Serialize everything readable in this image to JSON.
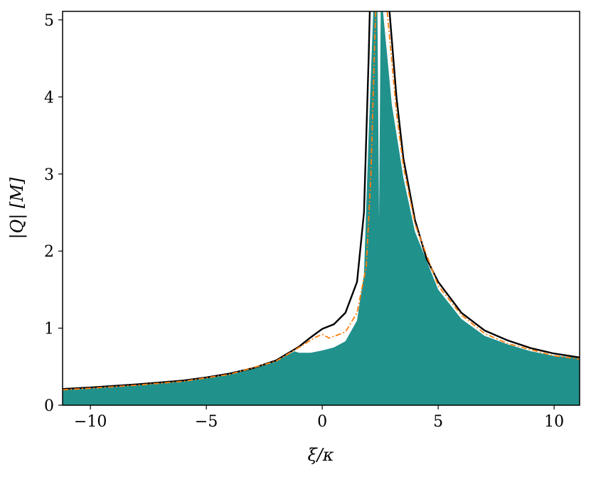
{
  "chart_data": {
    "type": "line",
    "x_label": "ξ/κ",
    "y_label": "|Q| [M]",
    "xlim": [
      -11.2,
      11.1
    ],
    "ylim": [
      0,
      5.11
    ],
    "xticks": [
      {
        "value": -10,
        "label": "−10"
      },
      {
        "value": -5,
        "label": "−5"
      },
      0,
      5,
      10
    ],
    "yticks": [
      0,
      1,
      2,
      3,
      4,
      5
    ],
    "series": [
      {
        "kind": "area",
        "color": "#21918c",
        "x": [
          -11.2,
          -10,
          -8,
          -6,
          -4,
          -2,
          -1.2,
          -1,
          -0.5,
          0,
          0.5,
          1,
          1.5,
          1.8,
          2.0,
          2.2,
          2.38,
          2.45,
          2.52,
          2.62,
          3.0,
          3.5,
          4,
          5,
          6,
          7,
          8,
          9,
          10,
          11.1
        ],
        "values": [
          0.2,
          0.22,
          0.26,
          0.31,
          0.4,
          0.57,
          0.7,
          0.68,
          0.68,
          0.71,
          0.75,
          0.83,
          1.1,
          1.7,
          3.5,
          5.11,
          5.11,
          2.4,
          5.11,
          5.11,
          3.9,
          2.95,
          2.25,
          1.5,
          1.12,
          0.9,
          0.79,
          0.7,
          0.64,
          0.62
        ]
      },
      {
        "kind": "line",
        "color": "#000000",
        "dash": "solid",
        "x": [
          -11.2,
          -10,
          -8,
          -6,
          -5,
          -4,
          -3,
          -2,
          -1,
          -0.5,
          0,
          0.5,
          1,
          1.5,
          1.8,
          2.0,
          2.05,
          2.5,
          2.9,
          3.2,
          3.5,
          4,
          4.5,
          5,
          6,
          7,
          8,
          9,
          10,
          11.1
        ],
        "values": [
          0.21,
          0.23,
          0.27,
          0.32,
          0.36,
          0.41,
          0.48,
          0.58,
          0.76,
          0.88,
          0.99,
          1.05,
          1.2,
          1.6,
          2.5,
          4.5,
          5.11,
          null,
          5.11,
          4.0,
          3.2,
          2.4,
          1.9,
          1.6,
          1.2,
          0.97,
          0.84,
          0.74,
          0.67,
          0.62
        ]
      },
      {
        "kind": "line",
        "color": "#ff7f0e",
        "dash": "dashdot",
        "x": [
          -11.2,
          -10,
          -8,
          -6,
          -4,
          -2,
          -1,
          -0.3,
          0,
          0.3,
          1,
          1.5,
          1.9,
          2.1,
          2.3,
          2.55,
          2.8,
          3.2,
          3.5,
          4,
          5,
          6,
          7,
          8,
          9,
          10,
          11.1
        ],
        "values": [
          0.2,
          0.22,
          0.26,
          0.31,
          0.4,
          0.57,
          0.75,
          0.88,
          0.92,
          0.87,
          0.95,
          1.2,
          1.8,
          3.0,
          5.11,
          null,
          5.11,
          3.8,
          3.1,
          2.35,
          1.55,
          1.17,
          0.93,
          0.8,
          0.72,
          0.64,
          0.6
        ]
      }
    ]
  }
}
